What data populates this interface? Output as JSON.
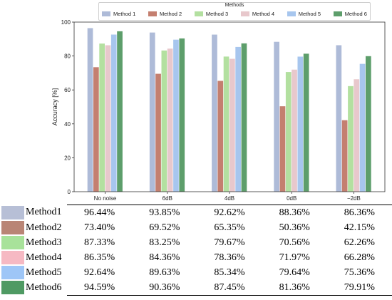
{
  "chart_data": {
    "type": "bar",
    "categories": [
      "No noise",
      "6dB",
      "4dB",
      "0dB",
      "−2dB"
    ],
    "ylabel": "Accuracy [%]",
    "ylim": [
      0,
      100
    ],
    "yticks": [
      0,
      20,
      40,
      60,
      80,
      100
    ],
    "legend": {
      "title": "Methods",
      "placement": "top"
    },
    "series": [
      {
        "name": "Method 1",
        "color": "#aebbd8",
        "values": [
          96.44,
          93.85,
          92.62,
          88.36,
          86.36
        ]
      },
      {
        "name": "Method 2",
        "color": "#c47f6f",
        "values": [
          73.4,
          69.52,
          65.35,
          50.36,
          42.15
        ]
      },
      {
        "name": "Method 3",
        "color": "#b3e0a0",
        "values": [
          87.33,
          83.25,
          79.67,
          70.56,
          62.26
        ]
      },
      {
        "name": "Method 4",
        "color": "#e8c8cc",
        "values": [
          86.35,
          84.36,
          78.36,
          71.97,
          66.28
        ]
      },
      {
        "name": "Method 5",
        "color": "#a7c6ee",
        "values": [
          92.64,
          89.63,
          85.34,
          79.64,
          75.36
        ]
      },
      {
        "name": "Method 6",
        "color": "#5d9e6b",
        "values": [
          94.59,
          90.36,
          87.45,
          81.36,
          79.91
        ]
      }
    ]
  },
  "table": {
    "rows": [
      {
        "label": "Method1",
        "color": "#b7bfd6",
        "cells": [
          "96.44%",
          "93.85%",
          "92.62%",
          "88.36%",
          "86.36%"
        ]
      },
      {
        "label": "Method2",
        "color": "#b98575",
        "cells": [
          "73.40%",
          "69.52%",
          "65.35%",
          "50.36%",
          "42.15%"
        ]
      },
      {
        "label": "Method3",
        "color": "#a8e29a",
        "cells": [
          "87.33%",
          "83.25%",
          "79.67%",
          "70.56%",
          "62.26%"
        ]
      },
      {
        "label": "Method4",
        "color": "#f6b9c3",
        "cells": [
          "86.35%",
          "84.36%",
          "78.36%",
          "71.97%",
          "66.28%"
        ]
      },
      {
        "label": "Method5",
        "color": "#9ec6f7",
        "cells": [
          "92.64%",
          "89.63%",
          "85.34%",
          "79.64%",
          "75.36%"
        ]
      },
      {
        "label": "Method6",
        "color": "#4f9a63",
        "cells": [
          "94.59%",
          "90.36%",
          "87.45%",
          "81.36%",
          "79.91%"
        ]
      }
    ]
  }
}
